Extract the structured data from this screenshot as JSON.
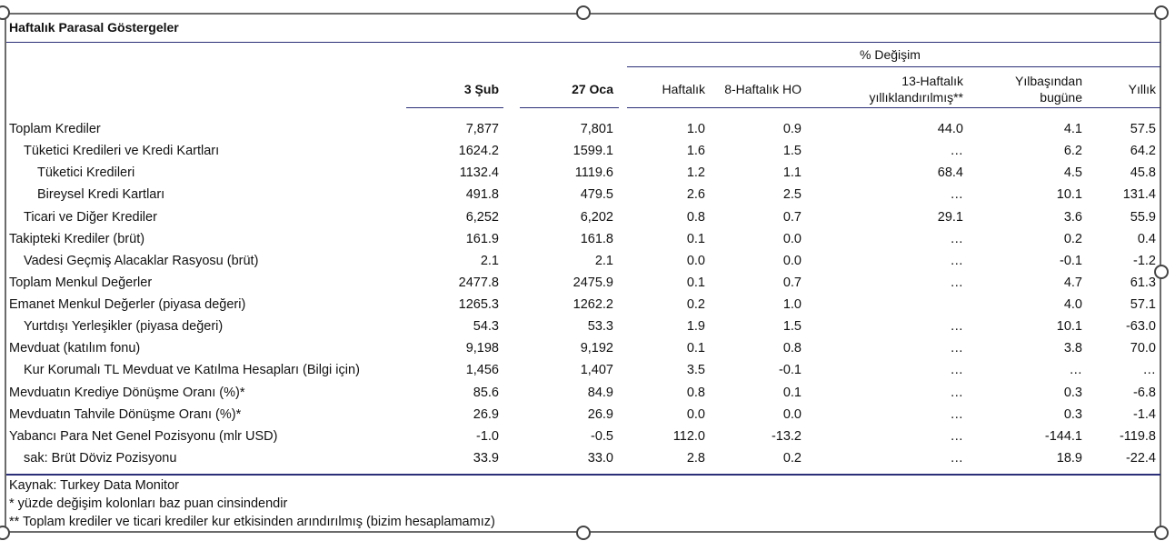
{
  "title": "Haftalık Parasal Göstergeler",
  "header": {
    "group": "% Değişim",
    "col_3sub": "3 Şub",
    "col_27oca": "27 Oca",
    "col_haftalik": "Haftalık",
    "col_8haftalik": "8-Haftalık HO",
    "col_13haftalik_l1": "13-Haftalık",
    "col_13haftalik_l2": "yıllıklandırılmış**",
    "col_ytd_l1": "Yılbaşından",
    "col_ytd_l2": "bugüne",
    "col_yillik": "Yıllık"
  },
  "rows": [
    {
      "label": "Toplam Krediler",
      "indent": 0,
      "v1": "7,877",
      "v2": "7,801",
      "wk": "1.0",
      "w8": "0.9",
      "w13": "44.0",
      "ytd": "4.1",
      "yoy": "57.5"
    },
    {
      "label": "Tüketici Kredileri ve Kredi Kartları",
      "indent": 1,
      "v1": "1624.2",
      "v2": "1599.1",
      "wk": "1.6",
      "w8": "1.5",
      "w13": "…",
      "ytd": "6.2",
      "yoy": "64.2"
    },
    {
      "label": "Tüketici Kredileri",
      "indent": 2,
      "v1": "1132.4",
      "v2": "1119.6",
      "wk": "1.2",
      "w8": "1.1",
      "w13": "68.4",
      "ytd": "4.5",
      "yoy": "45.8"
    },
    {
      "label": "Bireysel Kredi Kartları",
      "indent": 2,
      "v1": "491.8",
      "v2": "479.5",
      "wk": "2.6",
      "w8": "2.5",
      "w13": "…",
      "ytd": "10.1",
      "yoy": "131.4"
    },
    {
      "label": "Ticari ve Diğer Krediler",
      "indent": 1,
      "v1": "6,252",
      "v2": "6,202",
      "wk": "0.8",
      "w8": "0.7",
      "w13": "29.1",
      "ytd": "3.6",
      "yoy": "55.9"
    },
    {
      "label": "Takipteki Krediler (brüt)",
      "indent": 0,
      "v1": "161.9",
      "v2": "161.8",
      "wk": "0.1",
      "w8": "0.0",
      "w13": "…",
      "ytd": "0.2",
      "yoy": "0.4"
    },
    {
      "label": "Vadesi Geçmiş Alacaklar Rasyosu (brüt)",
      "indent": 1,
      "v1": "2.1",
      "v2": "2.1",
      "wk": "0.0",
      "w8": "0.0",
      "w13": "…",
      "ytd": "-0.1",
      "yoy": "-1.2"
    },
    {
      "label": "Toplam Menkul Değerler",
      "indent": 0,
      "v1": "2477.8",
      "v2": "2475.9",
      "wk": "0.1",
      "w8": "0.7",
      "w13": "…",
      "ytd": "4.7",
      "yoy": "61.3"
    },
    {
      "label": "Emanet Menkul Değerler (piyasa değeri)",
      "indent": 0,
      "v1": "1265.3",
      "v2": "1262.2",
      "wk": "0.2",
      "w8": "1.0",
      "w13": "",
      "ytd": "4.0",
      "yoy": "57.1"
    },
    {
      "label": "Yurtdışı Yerleşikler (piyasa değeri)",
      "indent": 1,
      "v1": "54.3",
      "v2": "53.3",
      "wk": "1.9",
      "w8": "1.5",
      "w13": "…",
      "ytd": "10.1",
      "yoy": "-63.0"
    },
    {
      "label": "Mevduat (katılım fonu)",
      "indent": 0,
      "v1": "9,198",
      "v2": "9,192",
      "wk": "0.1",
      "w8": "0.8",
      "w13": "…",
      "ytd": "3.8",
      "yoy": "70.0"
    },
    {
      "label": "Kur Korumalı TL Mevduat ve Katılma Hesapları (Bilgi için)",
      "indent": 1,
      "v1": "1,456",
      "v2": "1,407",
      "wk": "3.5",
      "w8": "-0.1",
      "w13": "…",
      "ytd": "…",
      "yoy": "…"
    },
    {
      "label": "Mevduatın Krediye Dönüşme Oranı (%)*",
      "indent": 0,
      "v1": "85.6",
      "v2": "84.9",
      "wk": "0.8",
      "w8": "0.1",
      "w13": "…",
      "ytd": "0.3",
      "yoy": "-6.8"
    },
    {
      "label": "Mevduatın Tahvile Dönüşme Oranı (%)*",
      "indent": 0,
      "v1": "26.9",
      "v2": "26.9",
      "wk": "0.0",
      "w8": "0.0",
      "w13": "…",
      "ytd": "0.3",
      "yoy": "-1.4"
    },
    {
      "label": "Yabancı Para Net Genel Pozisyonu (mlr USD)",
      "indent": 0,
      "v1": "-1.0",
      "v2": "-0.5",
      "wk": "112.0",
      "w8": "-13.2",
      "w13": "…",
      "ytd": "-144.1",
      "yoy": "-119.8"
    },
    {
      "label": "sak: Brüt Döviz Pozisyonu",
      "indent": 1,
      "v1": "33.9",
      "v2": "33.0",
      "wk": "2.8",
      "w8": "0.2",
      "w13": "…",
      "ytd": "18.9",
      "yoy": "-22.4"
    }
  ],
  "footnotes": [
    "Kaynak: Turkey Data Monitor",
    "* yüzde değişim kolonları baz puan cinsindendir",
    "** Toplam krediler ve ticari krediler kur etkisinden arındırılmış (bizim hesaplamamız)"
  ]
}
